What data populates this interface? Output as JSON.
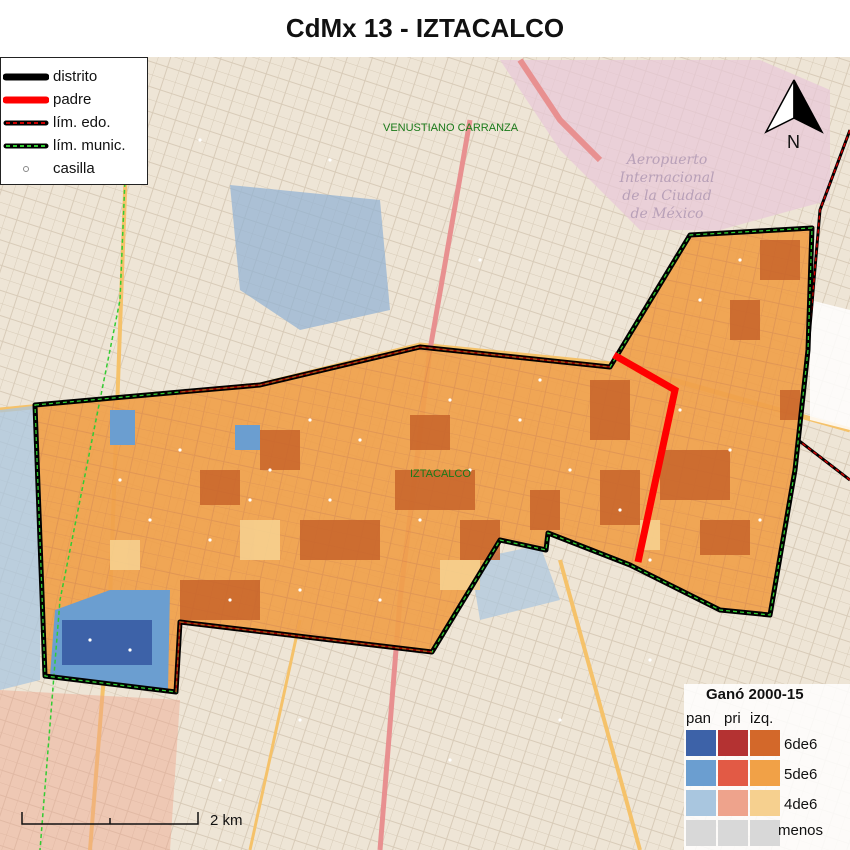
{
  "title": "CdMx 13 - IZTACALCO",
  "legend": {
    "items": [
      {
        "label": "distrito"
      },
      {
        "label": "padre"
      },
      {
        "label": "lím. edo."
      },
      {
        "label": "lím. munic."
      },
      {
        "label": "casilla"
      }
    ]
  },
  "results_legend": {
    "title": "Ganó 2000-15",
    "parties": [
      "pan",
      "pri",
      "izq."
    ],
    "levels": [
      "6de6",
      "5de6",
      "4de6",
      "menos"
    ],
    "colors": {
      "pan": [
        "#3d62a8",
        "#6b9ed0",
        "#a9c6df",
        "#d8d8d8"
      ],
      "pri": [
        "#b43232",
        "#e25a45",
        "#eea38c",
        "#d8d8d8"
      ],
      "izq": [
        "#d3682a",
        "#f1a147",
        "#f6d08f",
        "#d8d8d8"
      ]
    }
  },
  "scale": {
    "label": "2 km"
  },
  "north_arrow": {
    "label": "N"
  },
  "map_labels": {
    "municipality_1": "VENUSTIANO CARRANZA",
    "municipality_2": "IZTACALCO",
    "airport": "Aeropuerto Internacional de la Ciudad de México"
  },
  "colors": {
    "district_border": "#000000",
    "parent_border": "#ff0000",
    "municipal_line": "#33cc33",
    "state_line": "#cc0000",
    "base_map": "#eee5d6"
  }
}
